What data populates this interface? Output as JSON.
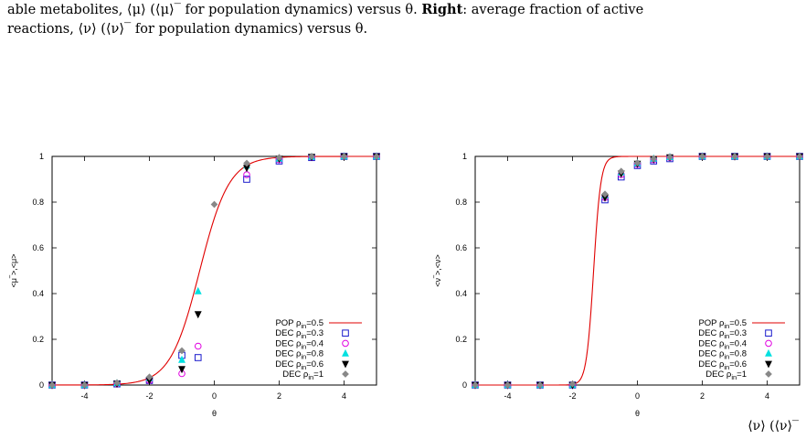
{
  "caption": {
    "line1": "able metabolites, ⟨μ⟩ (⟨μ⟩‾ for population dynamics) versus θ.",
    "right_label": "Right",
    "line1_tail": ": average fraction of active",
    "line2": "reactions, ⟨ν⟩ (⟨ν⟩‾ for population dynamics) versus θ."
  },
  "bottom_fragment": "⟨ν⟩ (⟨ν⟩‾",
  "chart_data": [
    {
      "type": "scatter",
      "xlabel": "θ",
      "ylabel": "<μ‾>,<μ>",
      "xlim": [
        -5,
        5
      ],
      "ylim": [
        0,
        1
      ],
      "xticks": [
        -4,
        -2,
        0,
        2,
        4
      ],
      "yticks": [
        0,
        0.2,
        0.4,
        0.6,
        0.8,
        1
      ],
      "legend_position": "bottom-right",
      "line_series": {
        "name": "POP ρin=0.5",
        "color": "#e00000",
        "center": -0.45,
        "steepness": 2.2
      },
      "series": [
        {
          "name": "DEC ρin=0.3",
          "marker": "square",
          "color": "#1a1acc",
          "points": [
            [
              -5,
              0
            ],
            [
              -4,
              0
            ],
            [
              -3,
              0.005
            ],
            [
              -2,
              0.02
            ],
            [
              -1,
              0.13
            ],
            [
              -0.5,
              0.12
            ],
            [
              1,
              0.9
            ],
            [
              2,
              0.98
            ],
            [
              3,
              0.995
            ],
            [
              4,
              1
            ],
            [
              5,
              1
            ]
          ]
        },
        {
          "name": "DEC ρin=0.4",
          "marker": "circle",
          "color": "#e000e0",
          "points": [
            [
              -5,
              0
            ],
            [
              -4,
              0
            ],
            [
              -3,
              0.005
            ],
            [
              -2,
              0.02
            ],
            [
              -1,
              0.05
            ],
            [
              -0.5,
              0.17
            ],
            [
              1,
              0.92
            ],
            [
              2,
              0.985
            ],
            [
              3,
              0.997
            ],
            [
              4,
              1
            ],
            [
              5,
              1
            ]
          ]
        },
        {
          "name": "DEC ρin=0.8",
          "marker": "triangle-up",
          "color": "#00e0e0",
          "points": [
            [
              -5,
              0
            ],
            [
              -4,
              0
            ],
            [
              -3,
              0.008
            ],
            [
              -2,
              0.03
            ],
            [
              -1,
              0.11
            ],
            [
              -0.5,
              0.41
            ],
            [
              1,
              0.96
            ],
            [
              2,
              0.99
            ],
            [
              3,
              0.998
            ],
            [
              4,
              1
            ],
            [
              5,
              1
            ]
          ]
        },
        {
          "name": "DEC ρin=0.6",
          "marker": "triangle-down",
          "color": "#000000",
          "points": [
            [
              -5,
              0
            ],
            [
              -4,
              0
            ],
            [
              -3,
              0.006
            ],
            [
              -2,
              0.02
            ],
            [
              -1,
              0.07
            ],
            [
              -0.5,
              0.31
            ],
            [
              1,
              0.95
            ],
            [
              2,
              0.99
            ],
            [
              3,
              0.998
            ],
            [
              4,
              1
            ],
            [
              5,
              1
            ]
          ]
        },
        {
          "name": "DEC ρin=1",
          "marker": "diamond",
          "color": "#888888",
          "points": [
            [
              -5,
              0
            ],
            [
              -4,
              0
            ],
            [
              -3,
              0.01
            ],
            [
              -2,
              0.035
            ],
            [
              -1,
              0.15
            ],
            [
              0,
              0.79
            ],
            [
              1,
              0.97
            ],
            [
              2,
              0.995
            ],
            [
              3,
              1
            ],
            [
              4,
              1
            ],
            [
              5,
              1
            ]
          ]
        }
      ]
    },
    {
      "type": "scatter",
      "xlabel": "θ",
      "ylabel": "<ν‾>,<ν>",
      "xlim": [
        -5,
        5
      ],
      "ylim": [
        0,
        1
      ],
      "xticks": [
        -4,
        -2,
        0,
        2,
        4
      ],
      "yticks": [
        0,
        0.2,
        0.4,
        0.6,
        0.8,
        1
      ],
      "legend_position": "bottom-right",
      "line_series": {
        "name": "POP ρin=0.5",
        "color": "#e00000",
        "center": -1.35,
        "steepness": 9.0
      },
      "series": [
        {
          "name": "DEC ρin=0.3",
          "marker": "square",
          "color": "#1a1acc",
          "points": [
            [
              -5,
              0
            ],
            [
              -4,
              0
            ],
            [
              -3,
              0
            ],
            [
              -2,
              0
            ],
            [
              -1,
              0.81
            ],
            [
              -0.5,
              0.91
            ],
            [
              0,
              0.96
            ],
            [
              0.5,
              0.98
            ],
            [
              1,
              0.99
            ],
            [
              2,
              1
            ],
            [
              3,
              1
            ],
            [
              4,
              1
            ],
            [
              5,
              1
            ]
          ]
        },
        {
          "name": "DEC ρin=0.4",
          "marker": "circle",
          "color": "#e000e0",
          "points": [
            [
              -5,
              0
            ],
            [
              -4,
              0
            ],
            [
              -3,
              0
            ],
            [
              -2,
              0
            ],
            [
              -1,
              0.82
            ],
            [
              -0.5,
              0.92
            ],
            [
              0,
              0.965
            ],
            [
              0.5,
              0.985
            ],
            [
              1,
              0.995
            ],
            [
              2,
              1
            ],
            [
              3,
              1
            ],
            [
              4,
              1
            ],
            [
              5,
              1
            ]
          ]
        },
        {
          "name": "DEC ρin=0.8",
          "marker": "triangle-up",
          "color": "#00e0e0",
          "points": [
            [
              -5,
              0
            ],
            [
              -4,
              0
            ],
            [
              -3,
              0
            ],
            [
              -2,
              0
            ],
            [
              -1,
              0.83
            ],
            [
              -0.5,
              0.93
            ],
            [
              0,
              0.97
            ],
            [
              0.5,
              0.99
            ],
            [
              1,
              0.997
            ],
            [
              2,
              1
            ],
            [
              3,
              1
            ],
            [
              4,
              1
            ],
            [
              5,
              1
            ]
          ]
        },
        {
          "name": "DEC ρin=0.6",
          "marker": "triangle-down",
          "color": "#000000",
          "points": [
            [
              -5,
              0
            ],
            [
              -4,
              0
            ],
            [
              -3,
              0
            ],
            [
              -2,
              0
            ],
            [
              -1,
              0.82
            ],
            [
              -0.5,
              0.925
            ],
            [
              0,
              0.968
            ],
            [
              0.5,
              0.988
            ],
            [
              1,
              0.996
            ],
            [
              2,
              1
            ],
            [
              3,
              1
            ],
            [
              4,
              1
            ],
            [
              5,
              1
            ]
          ]
        },
        {
          "name": "DEC ρin=1",
          "marker": "diamond",
          "color": "#888888",
          "points": [
            [
              -5,
              0
            ],
            [
              -4,
              0
            ],
            [
              -3,
              0
            ],
            [
              -2,
              0.005
            ],
            [
              -1,
              0.835
            ],
            [
              -0.5,
              0.935
            ],
            [
              0,
              0.972
            ],
            [
              0.5,
              0.99
            ],
            [
              1,
              0.997
            ],
            [
              2,
              1
            ],
            [
              3,
              1
            ],
            [
              4,
              1
            ],
            [
              5,
              1
            ]
          ]
        }
      ]
    }
  ]
}
